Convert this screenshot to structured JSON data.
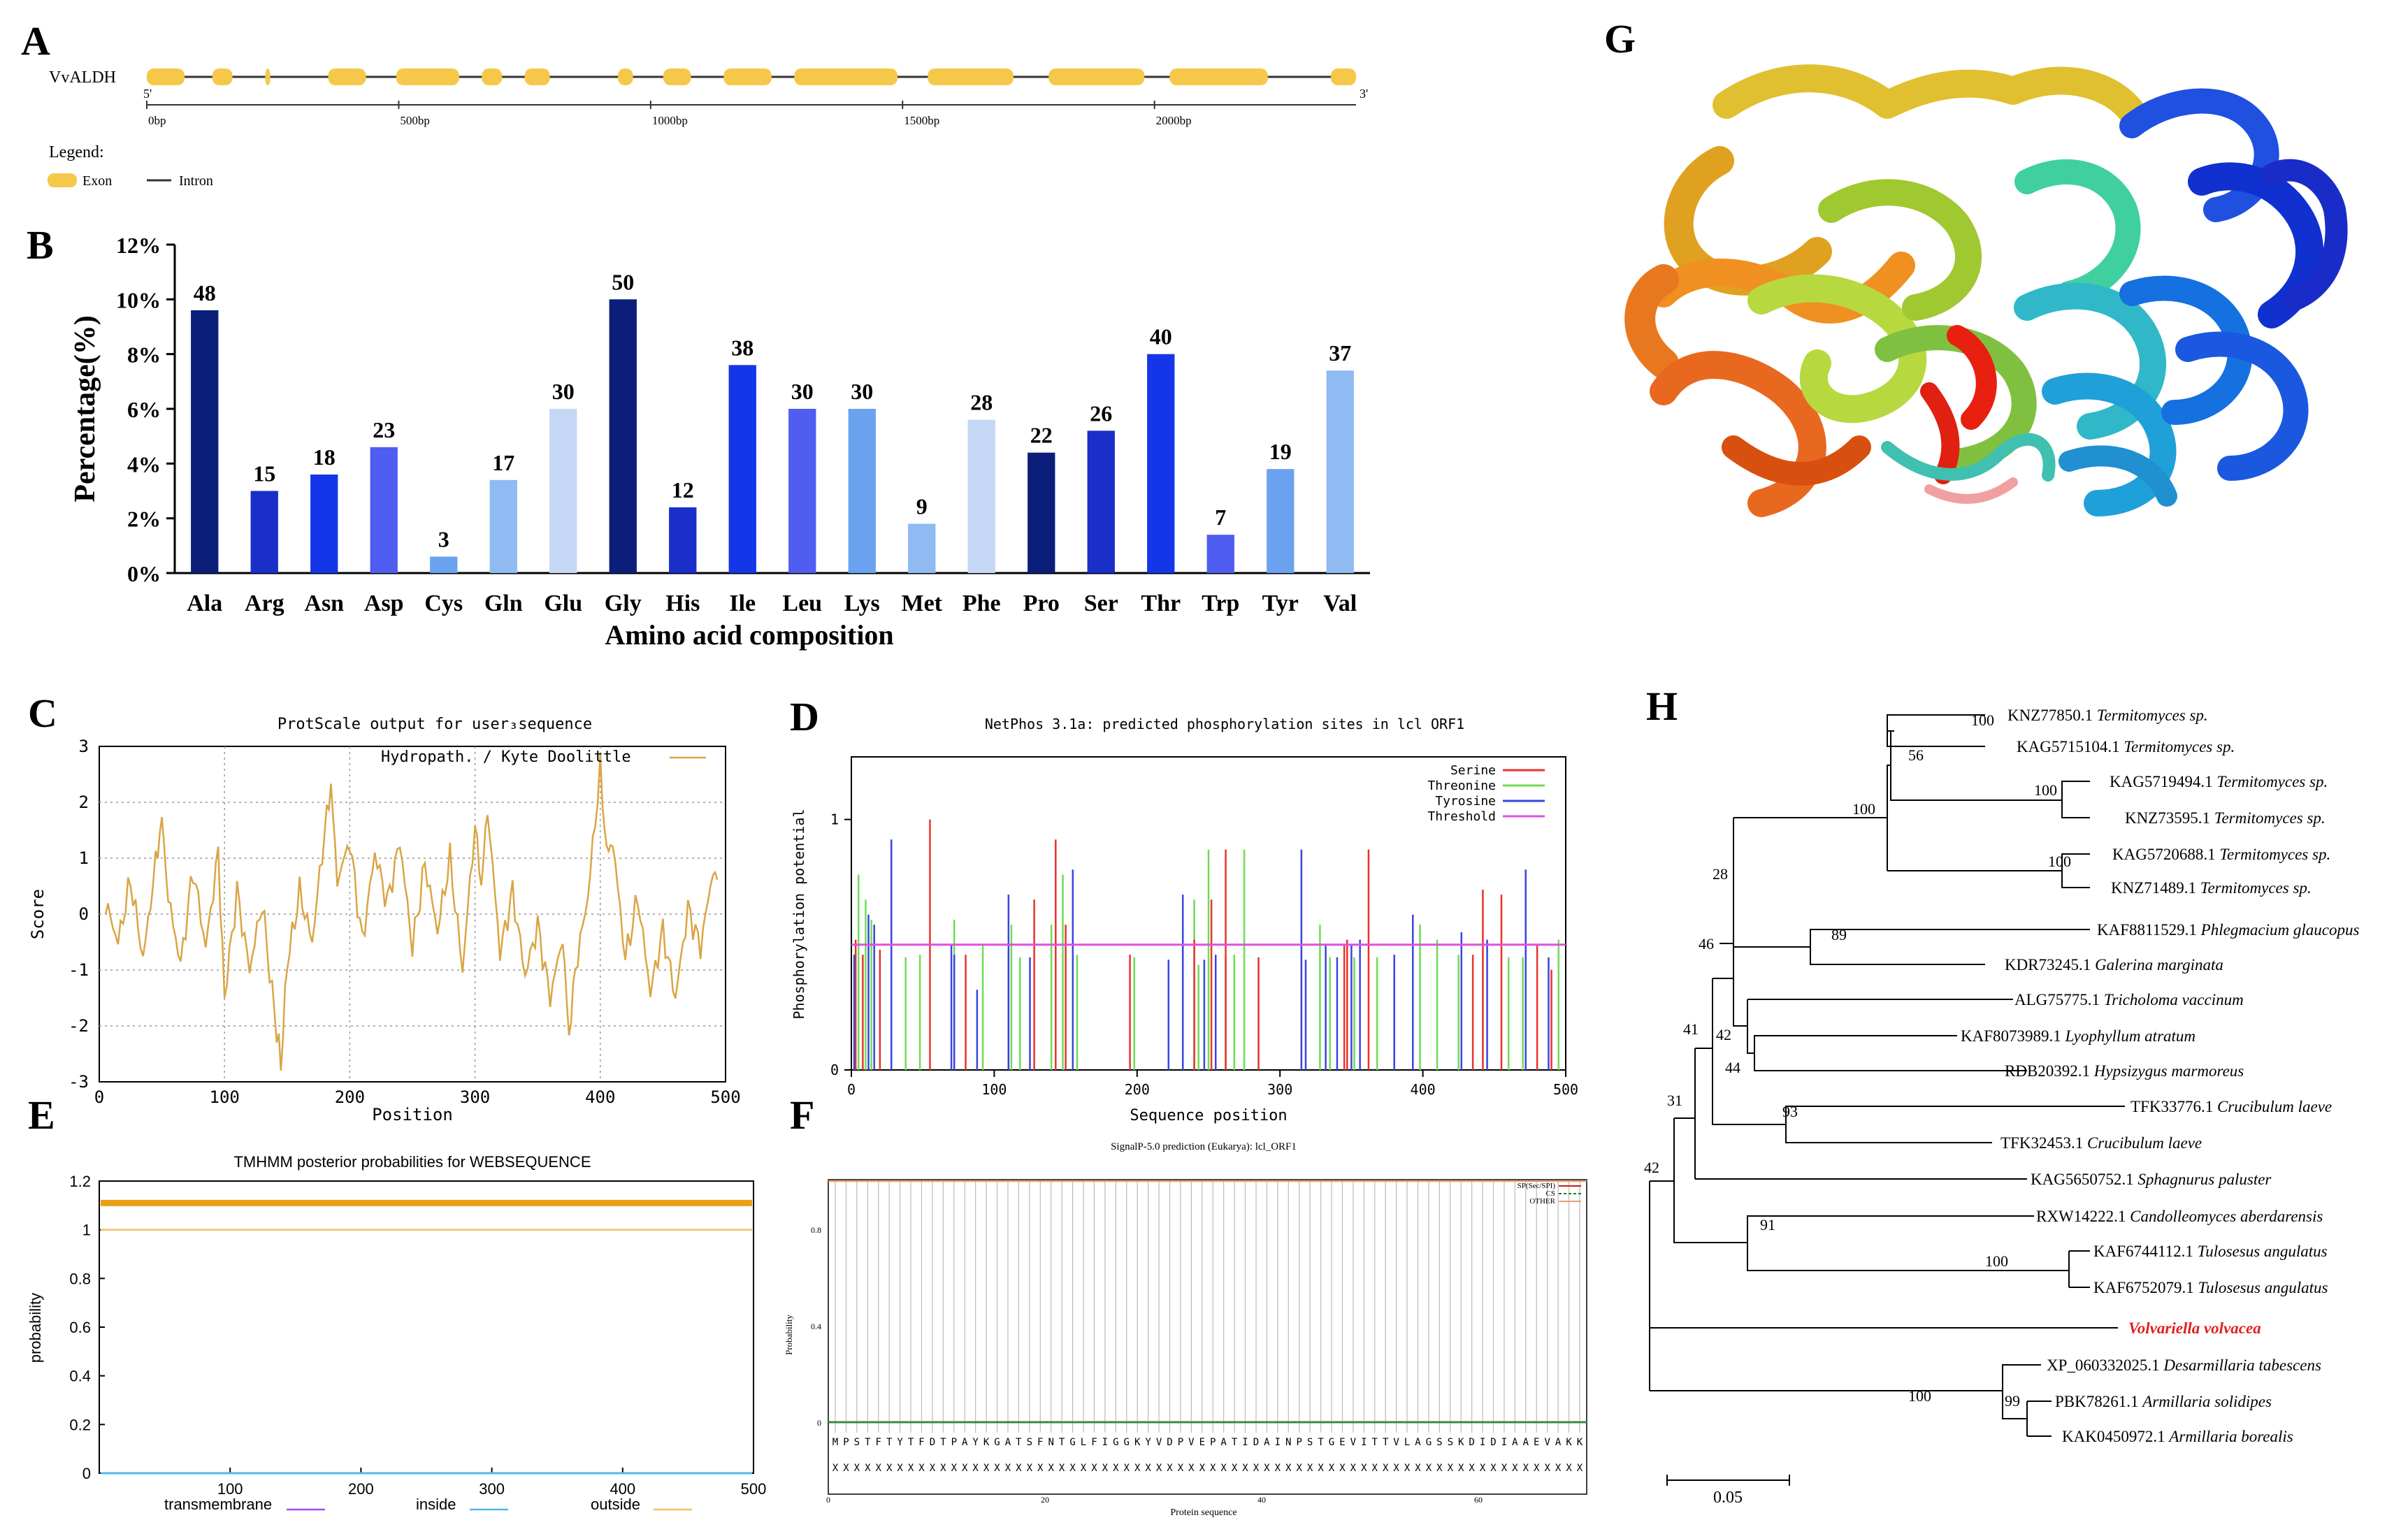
{
  "panel_letters": [
    "A",
    "B",
    "C",
    "D",
    "E",
    "F",
    "G",
    "H"
  ],
  "colors": {
    "exon": "#f5c84a",
    "dark_navy": "#0b1f7a",
    "blue": "#1536e8",
    "mid_blue": "#4f5df0",
    "light_blue": "#6aa2f0",
    "pale_blue": "#c4d8f5",
    "hydro": "#d9a545",
    "serine": "#e8332b",
    "threonine": "#6edc56",
    "tyrosine": "#3a45e0",
    "threshold": "#e050e0",
    "tree_red": "#e02020"
  },
  "chart_data": [
    {
      "panel": "A",
      "type": "gene-structure",
      "gene": "VvALDH",
      "five_prime": "5'",
      "three_prime": "3'",
      "axis_max_bp": 2400,
      "ticks": [
        "0bp",
        "500bp",
        "1000bp",
        "1500bp",
        "2000bp"
      ],
      "tick_values": [
        0,
        500,
        1000,
        1500,
        2000
      ],
      "exons": [
        [
          0,
          75
        ],
        [
          130,
          170
        ],
        [
          235,
          245
        ],
        [
          360,
          435
        ],
        [
          495,
          620
        ],
        [
          665,
          705
        ],
        [
          750,
          800
        ],
        [
          935,
          965
        ],
        [
          1025,
          1080
        ],
        [
          1145,
          1240
        ],
        [
          1285,
          1490
        ],
        [
          1550,
          1720
        ],
        [
          1790,
          1980
        ],
        [
          2030,
          2225
        ],
        [
          2350,
          2400
        ]
      ],
      "legend_title": "Legend:",
      "legend_exon": "Exon",
      "legend_intron": "Intron"
    },
    {
      "panel": "B",
      "type": "bar",
      "categories": [
        "Ala",
        "Arg",
        "Asn",
        "Asp",
        "Cys",
        "Gln",
        "Glu",
        "Gly",
        "His",
        "Ile",
        "Leu",
        "Lys",
        "Met",
        "Phe",
        "Pro",
        "Ser",
        "Thr",
        "Trp",
        "Tyr",
        "Val"
      ],
      "values": [
        9.6,
        3.0,
        3.6,
        4.6,
        0.6,
        3.4,
        6.0,
        10.0,
        2.4,
        7.6,
        6.0,
        6.0,
        1.8,
        5.6,
        4.4,
        5.2,
        8.0,
        1.4,
        3.8,
        7.4
      ],
      "labels": [
        "48",
        "15",
        "18",
        "23",
        "3",
        "17",
        "30",
        "50",
        "12",
        "38",
        "30",
        "30",
        "9",
        "28",
        "22",
        "26",
        "40",
        "7",
        "19",
        "37"
      ],
      "bar_colors": [
        "#0b1f7a",
        "#1a2ec8",
        "#1536e8",
        "#4f5df0",
        "#6aa2f0",
        "#8fbaf2",
        "#c4d8f5",
        "#0b1f7a",
        "#1a2ec8",
        "#1536e8",
        "#4f5df0",
        "#6aa2f0",
        "#8fbaf2",
        "#c4d8f5",
        "#0b1f7a",
        "#1a2ec8",
        "#1536e8",
        "#4f5df0",
        "#6aa2f0",
        "#8fbaf2"
      ],
      "yticks": [
        "0%",
        "2%",
        "4%",
        "6%",
        "8%",
        "10%",
        "12%"
      ],
      "ylim": [
        0,
        12
      ],
      "xlabel": "Amino acid composition",
      "ylabel": "Percentage(%)"
    },
    {
      "panel": "C",
      "type": "line",
      "title": "ProtScale output for user₃sequence",
      "legend": "Hydropath. / Kyte  Doolittle",
      "xlabel": "Position",
      "ylabel": "Score",
      "xlim": [
        0,
        500
      ],
      "ylim": [
        -3,
        3
      ],
      "xticks": [
        "0",
        "100",
        "200",
        "300",
        "400",
        "500"
      ],
      "yticks": [
        "-3",
        "-2",
        "-1",
        "0",
        "1",
        "2",
        "3"
      ],
      "x": [
        5,
        15,
        25,
        35,
        45,
        50,
        55,
        65,
        75,
        85,
        95,
        100,
        110,
        120,
        130,
        140,
        145,
        150,
        160,
        170,
        180,
        185,
        190,
        200,
        210,
        220,
        230,
        240,
        250,
        260,
        270,
        280,
        290,
        300,
        305,
        310,
        320,
        330,
        340,
        350,
        360,
        370,
        375,
        380,
        390,
        400,
        405,
        410,
        420,
        430,
        440,
        450,
        460,
        470,
        480,
        490,
        495
      ],
      "y": [
        0.2,
        -0.5,
        0.6,
        -0.8,
        0.9,
        1.7,
        0.3,
        -0.9,
        0.8,
        -0.6,
        1.1,
        -1.5,
        0.4,
        -1.0,
        0.2,
        -1.8,
        -2.7,
        -0.9,
        0.4,
        -0.5,
        1.5,
        2.3,
        0.6,
        1.3,
        -0.5,
        1.1,
        0.2,
        1.3,
        -0.6,
        0.9,
        -0.3,
        1.0,
        -1.0,
        1.6,
        0.5,
        1.9,
        -0.7,
        0.4,
        -1.1,
        -0.2,
        -1.5,
        -0.4,
        -2.2,
        -1.0,
        0.3,
        2.6,
        1.1,
        1.3,
        -0.8,
        0.3,
        -1.4,
        -0.3,
        -1.5,
        0.1,
        -0.6,
        0.8,
        0.5
      ]
    },
    {
      "panel": "D",
      "type": "bar",
      "title": "NetPhos 3.1a: predicted phosphorylation sites in lcl ORF1",
      "xlabel": "Sequence position",
      "ylabel": "Phosphorylation potential",
      "xlim": [
        0,
        500
      ],
      "ylim": [
        0,
        1.25
      ],
      "xticks": [
        "0",
        "100",
        "200",
        "300",
        "400",
        "500"
      ],
      "yticks": [
        "0",
        "1"
      ],
      "legend": [
        "Serine",
        "Threonine",
        "Tyrosine",
        "Threshold"
      ],
      "threshold": 0.5,
      "serine": [
        [
          3,
          0.52
        ],
        [
          8,
          0.46
        ],
        [
          20,
          0.48
        ],
        [
          55,
          1.0
        ],
        [
          80,
          0.46
        ],
        [
          110,
          0.48
        ],
        [
          128,
          0.68
        ],
        [
          143,
          0.92
        ],
        [
          150,
          0.58
        ],
        [
          195,
          0.46
        ],
        [
          240,
          0.52
        ],
        [
          252,
          0.68
        ],
        [
          262,
          0.88
        ],
        [
          285,
          0.45
        ],
        [
          345,
          0.5
        ],
        [
          347,
          0.52
        ],
        [
          362,
          0.88
        ],
        [
          435,
          0.46
        ],
        [
          442,
          0.72
        ],
        [
          455,
          0.7
        ],
        [
          480,
          0.5
        ],
        [
          490,
          0.4
        ]
      ],
      "threonine": [
        [
          5,
          0.78
        ],
        [
          10,
          0.68
        ],
        [
          14,
          0.6
        ],
        [
          38,
          0.45
        ],
        [
          48,
          0.46
        ],
        [
          72,
          0.6
        ],
        [
          92,
          0.5
        ],
        [
          112,
          0.58
        ],
        [
          118,
          0.45
        ],
        [
          140,
          0.58
        ],
        [
          148,
          0.78
        ],
        [
          158,
          0.46
        ],
        [
          198,
          0.45
        ],
        [
          232,
          0.55
        ],
        [
          240,
          0.68
        ],
        [
          243,
          0.42
        ],
        [
          250,
          0.88
        ],
        [
          262,
          0.45
        ],
        [
          268,
          0.46
        ],
        [
          275,
          0.88
        ],
        [
          315,
          0.45
        ],
        [
          335,
          0.45
        ],
        [
          328,
          0.58
        ],
        [
          352,
          0.45
        ],
        [
          368,
          0.45
        ],
        [
          380,
          0.4
        ],
        [
          398,
          0.58
        ],
        [
          410,
          0.52
        ],
        [
          425,
          0.46
        ],
        [
          460,
          0.45
        ],
        [
          470,
          0.45
        ],
        [
          495,
          0.52
        ]
      ],
      "tyrosine": [
        [
          2,
          0.46
        ],
        [
          12,
          0.62
        ],
        [
          16,
          0.58
        ],
        [
          28,
          0.92
        ],
        [
          70,
          0.5
        ],
        [
          72,
          0.46
        ],
        [
          88,
          0.32
        ],
        [
          110,
          0.7
        ],
        [
          125,
          0.45
        ],
        [
          155,
          0.8
        ],
        [
          222,
          0.44
        ],
        [
          232,
          0.7
        ],
        [
          247,
          0.44
        ],
        [
          255,
          0.46
        ],
        [
          315,
          0.88
        ],
        [
          318,
          0.44
        ],
        [
          332,
          0.5
        ],
        [
          340,
          0.45
        ],
        [
          350,
          0.5
        ],
        [
          356,
          0.52
        ],
        [
          380,
          0.46
        ],
        [
          393,
          0.62
        ],
        [
          427,
          0.55
        ],
        [
          445,
          0.52
        ],
        [
          472,
          0.8
        ],
        [
          488,
          0.45
        ]
      ]
    },
    {
      "panel": "E",
      "type": "line",
      "title": "TMHMM posterior probabilities for WEBSEQUENCE",
      "xlabel": "",
      "ylabel": "probability",
      "xlim": [
        0,
        500
      ],
      "ylim": [
        0,
        1.2
      ],
      "xticks": [
        "100",
        "200",
        "300",
        "400",
        "500"
      ],
      "yticks": [
        "0",
        "0.2",
        "0.4",
        "0.6",
        "0.8",
        "1",
        "1.2"
      ],
      "legend": [
        "transmembrane",
        "inside",
        "outside"
      ],
      "series": [
        {
          "name": "outside",
          "values": [
            1.0,
            1.0
          ]
        },
        {
          "name": "inside",
          "values": [
            0.0,
            0.0
          ]
        },
        {
          "name": "transmembrane",
          "values": [
            0.0,
            0.0
          ]
        }
      ],
      "outside_bar_level": 1.11
    },
    {
      "panel": "F",
      "type": "line",
      "title": "SignalP-5.0 prediction (Eukarya):  lcl_ORF1",
      "xlabel": "Protein sequence",
      "ylabel": "Probability",
      "xlim": [
        0,
        70
      ],
      "ylim": [
        0,
        1
      ],
      "xticks": [
        "0",
        "20",
        "40",
        "60"
      ],
      "yticks": [
        "0",
        "0.4",
        "0.8"
      ],
      "legend": [
        "SP(Sec/SPI)",
        "CS",
        "OTHER"
      ],
      "sequence": "MPSTFTYTFDTPAYKGATSFNTGLFIGGKYVDPVEPATIDAINPSTGEVITTVLAGSSKDIDIAAEVAKK",
      "xs_row": "XXXXXXXXXXXXXXXXXXXXXXXXXXXXXXXXXXXXXXXXXXXXXXXXXXXXXXXXXXXXXXXXXXXXXX"
    },
    {
      "panel": "H",
      "type": "tree",
      "scale_label": "0.05",
      "taxa": [
        {
          "acc": "KNZ77850.1",
          "species": "Termitomyces sp."
        },
        {
          "acc": "KAG5715104.1",
          "species": "Termitomyces sp."
        },
        {
          "acc": "KAG5719494.1",
          "species": "Termitomyces sp."
        },
        {
          "acc": "KNZ73595.1",
          "species": "Termitomyces sp."
        },
        {
          "acc": "KAG5720688.1",
          "species": "Termitomyces sp."
        },
        {
          "acc": "KNZ71489.1",
          "species": "Termitomyces sp."
        },
        {
          "acc": "KAF8811529.1",
          "species": "Phlegmacium glaucopus"
        },
        {
          "acc": "KDR73245.1",
          "species": "Galerina marginata"
        },
        {
          "acc": "ALG75775.1",
          "species": "Tricholoma vaccinum"
        },
        {
          "acc": "KAF8073989.1",
          "species": "Lyophyllum atratum"
        },
        {
          "acc": "RDB20392.1",
          "species": "Hypsizygus marmoreus"
        },
        {
          "acc": "TFK33776.1",
          "species": "Crucibulum laeve"
        },
        {
          "acc": "TFK32453.1",
          "species": "Crucibulum laeve"
        },
        {
          "acc": "KAG5650752.1",
          "species": "Sphagnurus paluster"
        },
        {
          "acc": "RXW14222.1",
          "species": "Candolleomyces aberdarensis"
        },
        {
          "acc": "KAF6744112.1",
          "species": "Tulosesus angulatus"
        },
        {
          "acc": "KAF6752079.1",
          "species": "Tulosesus angulatus"
        },
        {
          "acc": "",
          "species": "Volvariella volvacea"
        },
        {
          "acc": "XP_060332025.1",
          "species": "Desarmillaria tabescens"
        },
        {
          "acc": "PBK78261.1",
          "species": "Armillaria solidipes"
        },
        {
          "acc": "KAK0450972.1",
          "species": "Armillaria borealis"
        }
      ],
      "bootstrap": [
        "100",
        "56",
        "100",
        "100",
        "100",
        "28",
        "89",
        "46",
        "42",
        "44",
        "41",
        "93",
        "31",
        "42",
        "91",
        "100",
        "100",
        "99"
      ]
    }
  ]
}
